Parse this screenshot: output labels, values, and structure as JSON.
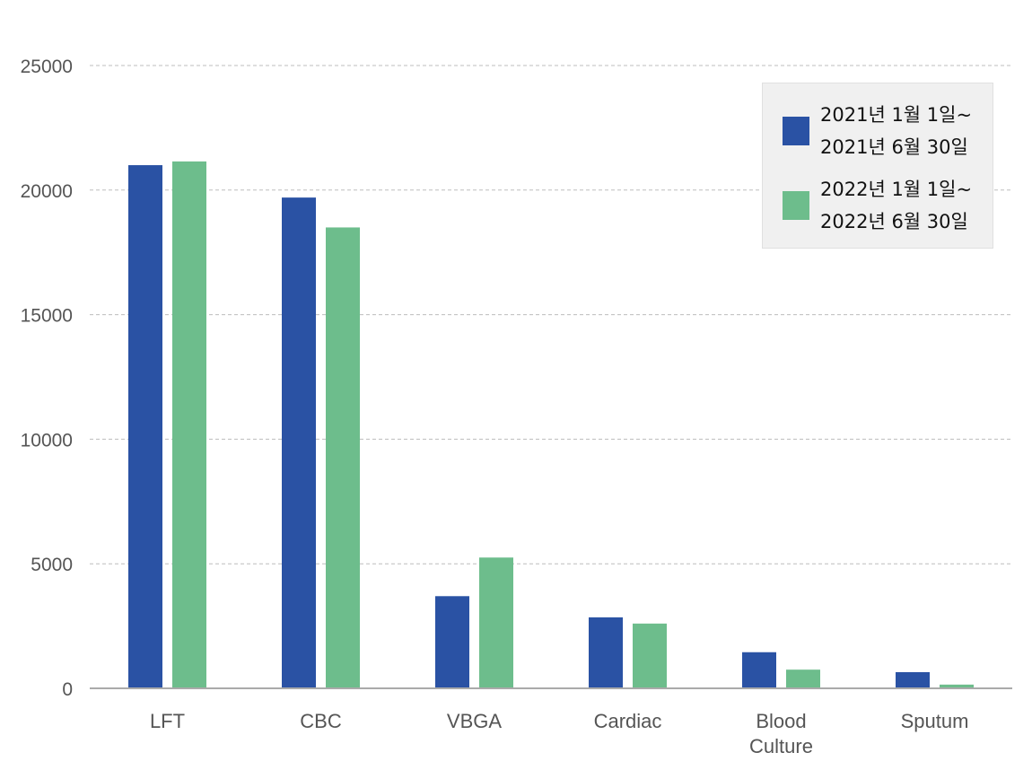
{
  "chart_data": {
    "type": "bar",
    "categories": [
      "LFT",
      "CBC",
      "VBGA",
      "Cardiac",
      "Blood Culture",
      "Sputum"
    ],
    "category_lines": [
      [
        "LFT"
      ],
      [
        "CBC"
      ],
      [
        "VBGA"
      ],
      [
        "Cardiac"
      ],
      [
        "Blood",
        "Culture"
      ],
      [
        "Sputum"
      ]
    ],
    "series": [
      {
        "label_lines": [
          "2021년 1월 1일~",
          "2021년 6월 30일"
        ],
        "color": "#2a52a4",
        "values": [
          21000,
          19700,
          3700,
          2850,
          1450,
          650
        ]
      },
      {
        "label_lines": [
          "2022년 1월 1일~",
          "2022년 6월 30일"
        ],
        "color": "#6dbd8c",
        "values": [
          21150,
          18500,
          5250,
          2600,
          750,
          150
        ]
      }
    ],
    "y_ticks": [
      0,
      5000,
      10000,
      15000,
      20000,
      25000
    ],
    "ylim": [
      0,
      25000
    ],
    "grid": true,
    "legend_position": "top-right"
  }
}
